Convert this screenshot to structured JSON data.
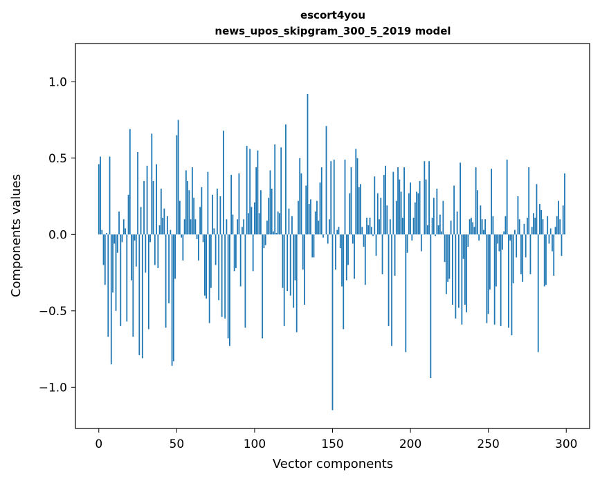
{
  "chart_data": {
    "type": "bar",
    "title": "escort4you",
    "subtitle": "news_upos_skipgram_300_5_2019 model",
    "xlabel": "Vector components",
    "ylabel": "Components values",
    "xlim": [
      -15,
      315
    ],
    "ylim": [
      -1.27,
      1.25
    ],
    "xticks": [
      0,
      50,
      100,
      150,
      200,
      250,
      300
    ],
    "xtick_labels": [
      "0",
      "50",
      "100",
      "150",
      "200",
      "250",
      "300"
    ],
    "yticks": [
      -1.0,
      -0.5,
      0.0,
      0.5,
      1.0
    ],
    "ytick_labels": [
      "−1.0",
      "−0.5",
      "0.0",
      "0.5",
      "1.0"
    ],
    "grid": false,
    "bar_color": "#1f77b4",
    "values": [
      0.46,
      0.51,
      0.03,
      -0.2,
      -0.33,
      0.01,
      -0.67,
      0.51,
      -0.85,
      -0.38,
      -0.06,
      -0.5,
      -0.12,
      0.15,
      -0.6,
      -0.05,
      0.1,
      0.04,
      -0.57,
      0.26,
      0.69,
      -0.3,
      -0.67,
      -0.04,
      -0.21,
      0.54,
      -0.79,
      0.18,
      -0.81,
      0.35,
      -0.25,
      0.45,
      -0.62,
      -0.05,
      0.66,
      0.35,
      -0.2,
      0.46,
      -0.22,
      0.06,
      0.3,
      0.11,
      0.17,
      -0.61,
      0.12,
      -0.45,
      0.03,
      -0.86,
      -0.83,
      -0.29,
      0.65,
      0.75,
      0.22,
      -0.02,
      -0.17,
      0.1,
      0.42,
      0.35,
      0.29,
      0.1,
      0.44,
      0.24,
      0.1,
      -0.03,
      -0.17,
      0.18,
      0.31,
      -0.05,
      -0.4,
      -0.42,
      0.41,
      -0.58,
      -0.35,
      0.26,
      0.04,
      -0.2,
      0.3,
      -0.43,
      0.25,
      -0.54,
      0.68,
      -0.55,
      0.1,
      -0.68,
      -0.73,
      0.39,
      0.13,
      -0.24,
      -0.22,
      0.1,
      0.4,
      -0.34,
      0.05,
      0.1,
      -0.61,
      0.58,
      0.14,
      0.56,
      0.18,
      -0.24,
      0.21,
      0.44,
      0.55,
      0.14,
      0.29,
      -0.68,
      -0.09,
      -0.07,
      0.09,
      0.24,
      0.42,
      0.3,
      0.02,
      0.59,
      0.01,
      0.15,
      0.14,
      0.57,
      -0.35,
      -0.6,
      0.72,
      -0.37,
      0.17,
      -0.4,
      0.12,
      -0.48,
      -0.3,
      -0.64,
      0.22,
      0.5,
      0.4,
      -0.23,
      -0.46,
      0.32,
      0.92,
      0.2,
      0.23,
      -0.15,
      -0.15,
      0.15,
      0.22,
      0.09,
      0.34,
      0.44,
      -0.02,
      0.0,
      0.71,
      -0.06,
      0.1,
      0.48,
      -1.15,
      0.49,
      -0.23,
      0.03,
      0.05,
      -0.09,
      -0.34,
      -0.62,
      0.49,
      -0.3,
      -0.2,
      0.27,
      0.44,
      -0.06,
      -0.29,
      0.56,
      0.5,
      0.31,
      0.33,
      0.05,
      -0.08,
      -0.33,
      0.11,
      0.06,
      0.11,
      0.05,
      -0.01,
      0.38,
      -0.14,
      0.27,
      0.1,
      0.24,
      -0.26,
      0.39,
      0.45,
      0.19,
      -0.6,
      0.1,
      -0.73,
      0.41,
      -0.27,
      0.22,
      0.44,
      0.36,
      0.28,
      0.11,
      0.44,
      -0.77,
      -0.12,
      0.27,
      0.34,
      -0.04,
      0.11,
      0.21,
      0.28,
      0.27,
      0.35,
      -0.11,
      0.0,
      0.48,
      0.36,
      0.06,
      0.48,
      -0.94,
      0.11,
      0.24,
      -0.01,
      0.3,
      0.06,
      0.13,
      0.02,
      0.22,
      -0.18,
      -0.39,
      -0.31,
      -0.29,
      0.09,
      -0.46,
      0.32,
      -0.55,
      0.15,
      -0.48,
      0.47,
      -0.59,
      -0.16,
      -0.46,
      -0.51,
      -0.08,
      0.1,
      0.11,
      0.08,
      0.05,
      0.44,
      0.29,
      -0.04,
      0.19,
      0.1,
      0.03,
      0.1,
      -0.58,
      -0.52,
      -0.36,
      0.43,
      0.12,
      -0.59,
      -0.34,
      -0.06,
      -0.11,
      -0.6,
      -0.1,
      0.02,
      0.12,
      0.49,
      -0.61,
      -0.04,
      -0.66,
      -0.32,
      0.03,
      -0.15,
      0.25,
      0.1,
      -0.26,
      -0.31,
      0.07,
      -0.15,
      0.11,
      0.44,
      -0.26,
      0.05,
      0.14,
      0.11,
      0.33,
      -0.77,
      0.2,
      0.16,
      0.1,
      -0.34,
      -0.33,
      0.12,
      -0.06,
      0.04,
      -0.11,
      -0.27,
      0.05,
      0.12,
      0.22,
      0.1,
      -0.14,
      0.19,
      0.4
    ]
  }
}
